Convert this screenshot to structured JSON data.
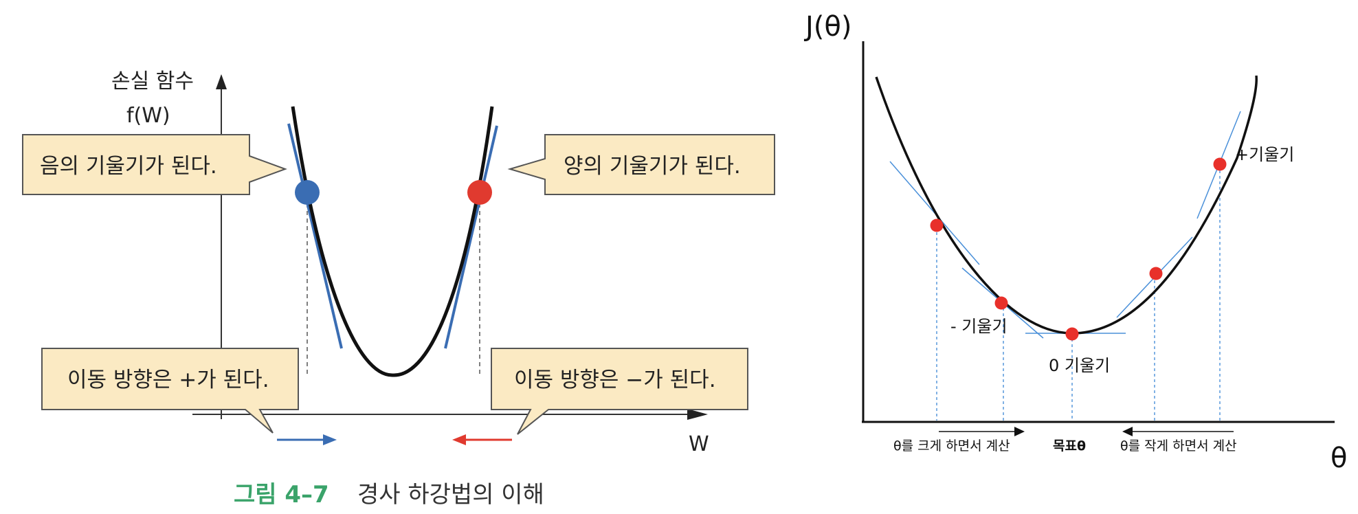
{
  "left_figure": {
    "y_axis_label_line1": "손실 함수",
    "y_axis_label_line2": "f(W)",
    "x_axis_label": "W",
    "callout_negative_slope": "음의 기울기가 된다.",
    "callout_positive_slope": "양의 기울기가 된다.",
    "callout_move_plus": "이동 방향은 +가 된다.",
    "callout_move_minus": "이동 방향은 −가 된다.",
    "caption_number": "그림 4–7",
    "caption_title": "경사 하강법의 이해",
    "colors": {
      "callout_fill": "#fbeac3",
      "negative_point": "#3a6db3",
      "positive_point": "#e03a2f",
      "caption_accent": "#3aa36a",
      "arrow_right": "#3a6db3",
      "arrow_left": "#e03a2f"
    }
  },
  "right_figure": {
    "y_axis_label": "J(θ)",
    "x_axis_label": "θ",
    "label_positive_slope": "+기울기",
    "label_negative_slope": "- 기울기",
    "label_zero_slope": "0 기울기",
    "label_increase_theta": "θ를 크게 하면서 계산",
    "label_target_theta": "목표θ",
    "label_decrease_theta": "θ를 작게 하면서 계산",
    "colors": {
      "point": "#e8302a",
      "tangent": "#4a90d9",
      "guide": "#4a90d9"
    }
  }
}
